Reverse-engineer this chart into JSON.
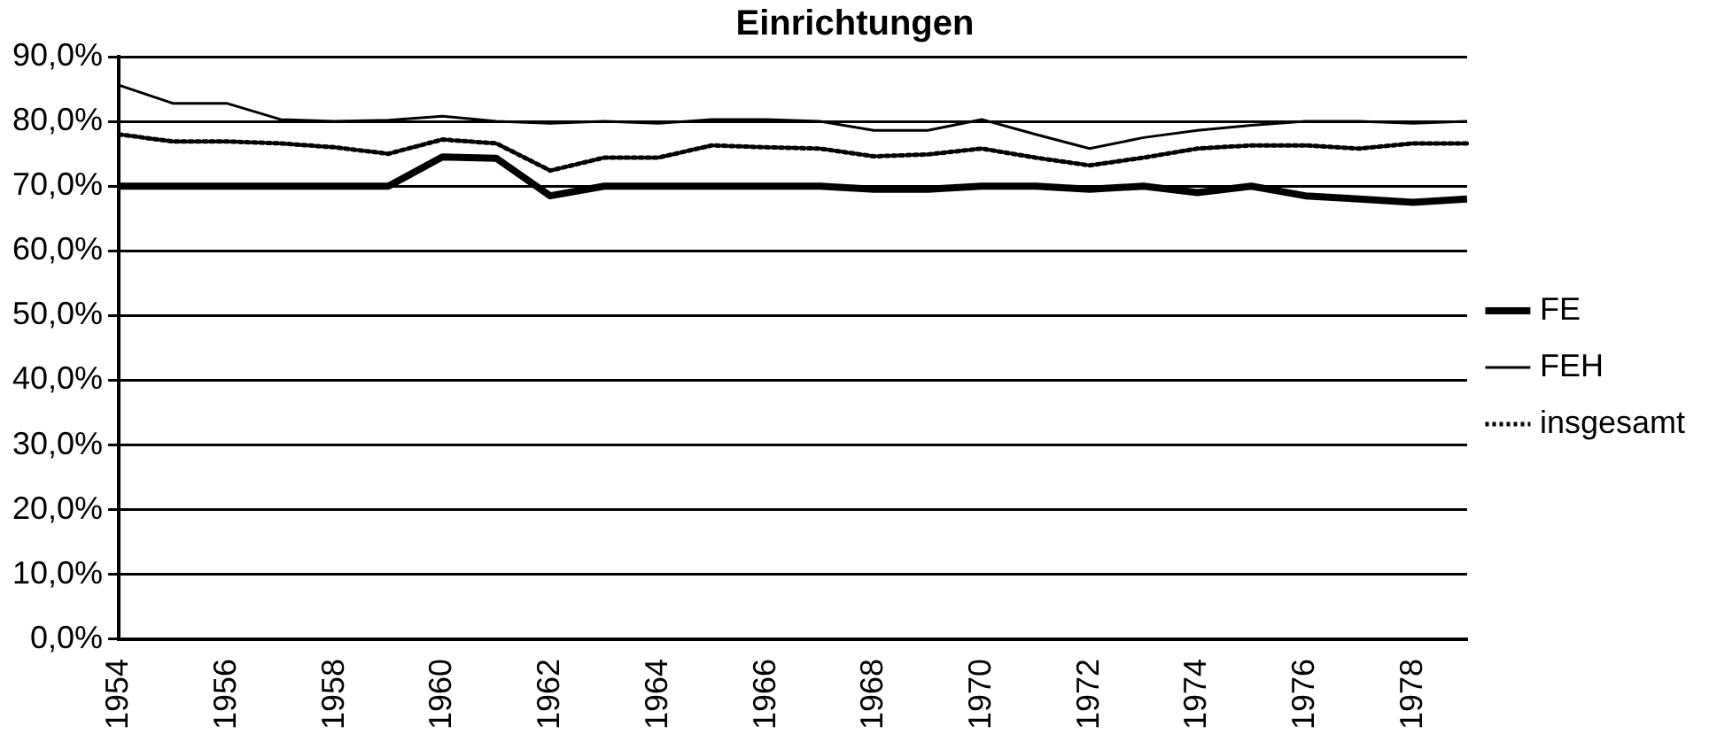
{
  "chart_data": {
    "type": "line",
    "title": "Einrichtungen",
    "categories": [
      "1954",
      null,
      "1956",
      null,
      "1958",
      null,
      "1960",
      null,
      "1962",
      null,
      "1964",
      null,
      "1966",
      null,
      "1968",
      null,
      "1970",
      null,
      "1972",
      null,
      "1974",
      null,
      "1976",
      null,
      "1978",
      null
    ],
    "series": [
      {
        "name": "FE",
        "color": "#000000",
        "line_style": "solid",
        "values": [
          70,
          70,
          70,
          70,
          70,
          70,
          74.5,
          74.3,
          68.5,
          70,
          70,
          70,
          70,
          70,
          69.5,
          69.5,
          70,
          70,
          69.5,
          70,
          69,
          70,
          68.5,
          68,
          67.5,
          68
        ]
      },
      {
        "name": "FEH",
        "color": "#000000",
        "line_style": "solid",
        "values": [
          85.6,
          82.8,
          82.8,
          80.3,
          80,
          80.2,
          80.8,
          80,
          79.7,
          80,
          79.7,
          80.3,
          80.3,
          80,
          78.6,
          78.6,
          80.3,
          78,
          75.8,
          77.5,
          78.6,
          79.4,
          80,
          80,
          79.7,
          80
        ]
      },
      {
        "name": "insgesamt",
        "color": "#000000",
        "line_style": "dotted",
        "values": [
          78,
          76.9,
          76.9,
          76.6,
          76,
          75,
          77.2,
          76.6,
          72.4,
          74.4,
          74.4,
          76.3,
          76,
          75.8,
          74.6,
          74.9,
          75.8,
          74.4,
          73.2,
          74.4,
          75.8,
          76.3,
          76.3,
          75.8,
          76.6,
          76.6
        ]
      }
    ],
    "ylim": [
      0,
      90
    ],
    "yticks": [
      {
        "value": 0,
        "label": "0,0%"
      },
      {
        "value": 10,
        "label": "10,0%"
      },
      {
        "value": 20,
        "label": "20,0%"
      },
      {
        "value": 30,
        "label": "30,0%"
      },
      {
        "value": 40,
        "label": "40,0%"
      },
      {
        "value": 50,
        "label": "50,0%"
      },
      {
        "value": 60,
        "label": "60,0%"
      },
      {
        "value": 70,
        "label": "70,0%"
      },
      {
        "value": 80,
        "label": "80,0%"
      },
      {
        "value": 90,
        "label": "90,0%"
      }
    ],
    "grid": "y",
    "legend": "right",
    "marker": "none"
  }
}
